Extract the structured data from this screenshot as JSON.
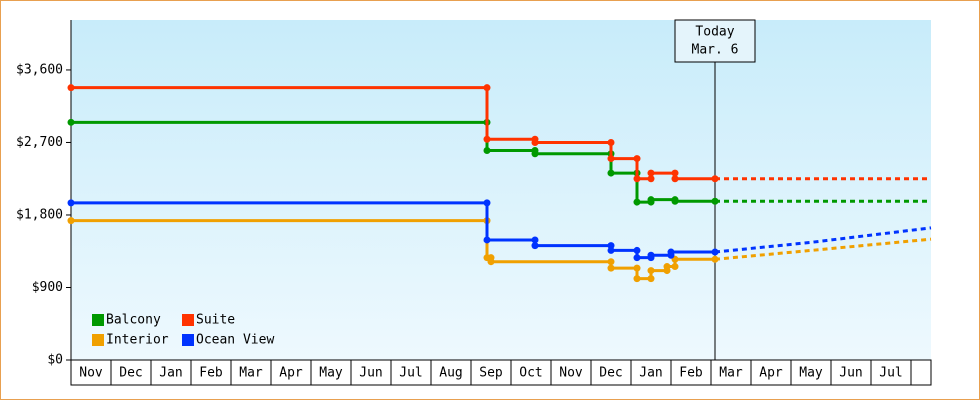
{
  "chart_data": {
    "type": "line",
    "step": true,
    "series": [
      {
        "name": "Balcony",
        "color": "#009900",
        "x": [
          0,
          10.4,
          10.4,
          11.6,
          11.6,
          13.5,
          13.5,
          14.15,
          14.15,
          14.5,
          14.5,
          15.1,
          15.1,
          16.1
        ],
        "values": [
          2950,
          2950,
          2600,
          2600,
          2560,
          2560,
          2320,
          2320,
          1960,
          1960,
          1990,
          1990,
          1970,
          1970
        ],
        "forecast_x": [
          16.1,
          21.5
        ],
        "forecast_values": [
          1970,
          1970
        ]
      },
      {
        "name": "Suite",
        "color": "#ff3300",
        "x": [
          0,
          10.4,
          10.4,
          11.6,
          11.6,
          13.5,
          13.5,
          14.15,
          14.15,
          14.5,
          14.5,
          15.1,
          15.1,
          16.1
        ],
        "values": [
          3380,
          3380,
          2740,
          2740,
          2700,
          2700,
          2500,
          2500,
          2250,
          2250,
          2320,
          2320,
          2250,
          2250
        ],
        "forecast_x": [
          16.1,
          21.5
        ],
        "forecast_values": [
          2250,
          2250
        ]
      },
      {
        "name": "Interior",
        "color": "#f0a000",
        "x": [
          0,
          10.4,
          10.4,
          10.5,
          10.5,
          13.5,
          13.5,
          14.15,
          14.15,
          14.5,
          14.5,
          14.9,
          14.9,
          15.1,
          15.1,
          16.1
        ],
        "values": [
          1730,
          1730,
          1270,
          1270,
          1220,
          1220,
          1140,
          1140,
          1010,
          1010,
          1110,
          1110,
          1160,
          1160,
          1250,
          1250
        ],
        "forecast_x": [
          16.1,
          18.5,
          21.5
        ],
        "forecast_values": [
          1250,
          1360,
          1500
        ]
      },
      {
        "name": "Ocean View",
        "color": "#0033ff",
        "x": [
          0,
          10.4,
          10.4,
          11.6,
          11.6,
          13.5,
          13.5,
          14.15,
          14.15,
          14.5,
          14.5,
          15.0,
          15.0,
          16.1
        ],
        "values": [
          1950,
          1950,
          1490,
          1490,
          1420,
          1420,
          1360,
          1360,
          1270,
          1270,
          1300,
          1300,
          1340,
          1340
        ],
        "forecast_x": [
          16.1,
          18.5,
          21.5
        ],
        "forecast_values": [
          1340,
          1460,
          1640
        ]
      }
    ],
    "xlim": [
      0,
      21.5
    ],
    "xticks": [
      {
        "value": 0.5,
        "label": "Nov"
      },
      {
        "value": 1.5,
        "label": "Dec"
      },
      {
        "value": 2.5,
        "label": "Jan"
      },
      {
        "value": 3.5,
        "label": "Feb"
      },
      {
        "value": 4.5,
        "label": "Mar"
      },
      {
        "value": 5.5,
        "label": "Apr"
      },
      {
        "value": 6.5,
        "label": "May"
      },
      {
        "value": 7.5,
        "label": "Jun"
      },
      {
        "value": 8.5,
        "label": "Jul"
      },
      {
        "value": 9.5,
        "label": "Aug"
      },
      {
        "value": 10.5,
        "label": "Sep"
      },
      {
        "value": 11.5,
        "label": "Oct"
      },
      {
        "value": 12.5,
        "label": "Nov"
      },
      {
        "value": 13.5,
        "label": "Dec"
      },
      {
        "value": 14.5,
        "label": "Jan"
      },
      {
        "value": 15.5,
        "label": "Feb"
      },
      {
        "value": 16.5,
        "label": "Mar"
      },
      {
        "value": 17.5,
        "label": "Apr"
      },
      {
        "value": 18.5,
        "label": "May"
      },
      {
        "value": 19.5,
        "label": "Jun"
      },
      {
        "value": 20.5,
        "label": "Jul"
      }
    ],
    "ylim": [
      0,
      4220
    ],
    "yticks": [
      {
        "value": 0,
        "label": "$0"
      },
      {
        "value": 900,
        "label": "$900"
      },
      {
        "value": 1800,
        "label": "$1,800"
      },
      {
        "value": 2700,
        "label": "$2,700"
      },
      {
        "value": 3600,
        "label": "$3,600"
      }
    ],
    "annotation": {
      "x": 16.1,
      "lines": [
        "Today",
        "Mar. 6"
      ]
    },
    "legend": "lower left"
  }
}
